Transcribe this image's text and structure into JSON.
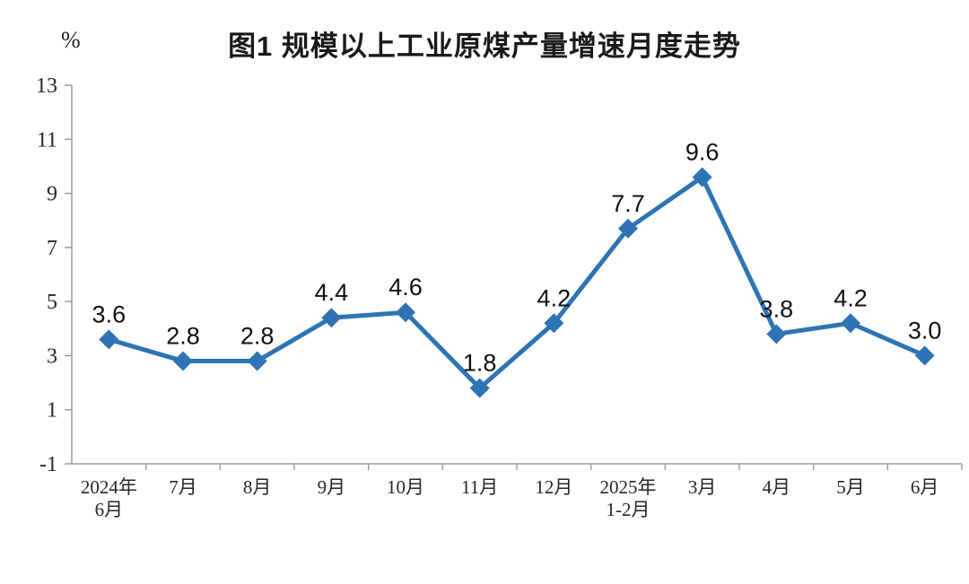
{
  "chart_data": {
    "type": "line",
    "title": "图1  规模以上工业原煤产量增速月度走势",
    "ylabel": "%",
    "xlabel": "",
    "categories": [
      [
        "2024年",
        "6月"
      ],
      [
        "7月"
      ],
      [
        "8月"
      ],
      [
        "9月"
      ],
      [
        "10月"
      ],
      [
        "11月"
      ],
      [
        "12月"
      ],
      [
        "2025年",
        "1-2月"
      ],
      [
        "3月"
      ],
      [
        "4月"
      ],
      [
        "5月"
      ],
      [
        "6月"
      ]
    ],
    "values": [
      3.6,
      2.8,
      2.8,
      4.4,
      4.6,
      1.8,
      4.2,
      7.7,
      9.6,
      3.8,
      4.2,
      3.0
    ],
    "data_labels": [
      "3.6",
      "2.8",
      "2.8",
      "4.4",
      "4.6",
      "1.8",
      "4.2",
      "7.7",
      "9.6",
      "3.8",
      "4.2",
      "3.0"
    ],
    "ylim": [
      -1,
      13
    ],
    "y_ticks": [
      13,
      11,
      9,
      7,
      5,
      3,
      1,
      -1
    ],
    "grid": false,
    "legend_position": "none",
    "marker": "diamond",
    "line_color": "#2E74B5",
    "axis_color": "#9C9C9C",
    "tick_text_color": "#262626",
    "data_label_color": "#111111"
  }
}
